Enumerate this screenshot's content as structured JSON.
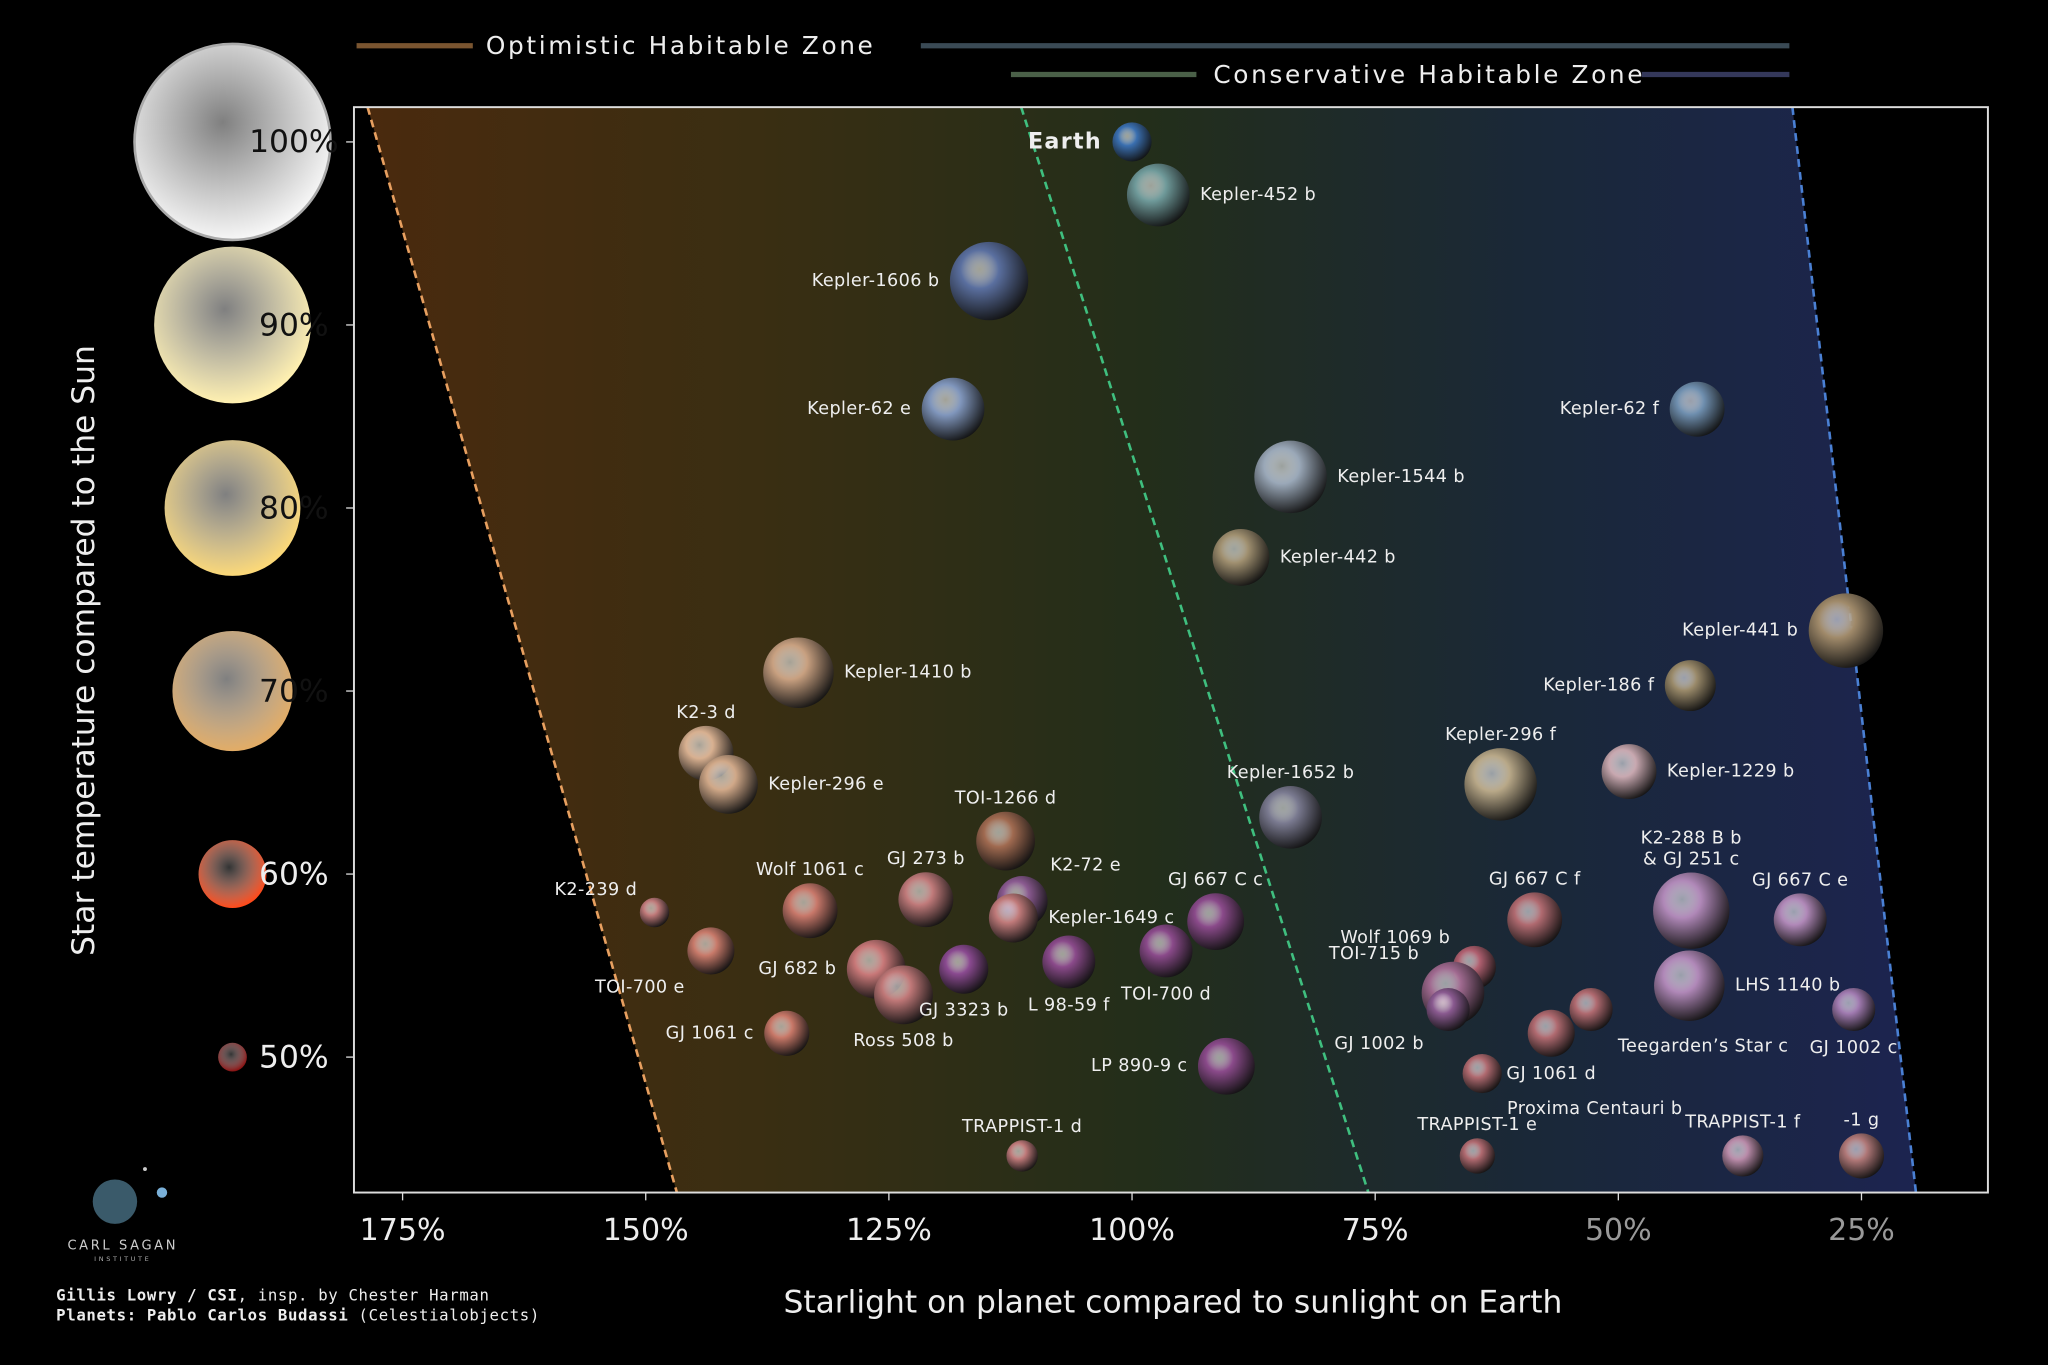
{
  "chart_data": {
    "type": "scatter",
    "x_label": "Starlight on planet compared to sunlight on Earth",
    "y_label": "Star temperature compared to the Sun",
    "xlim": [
      180,
      12
    ],
    "ylim": [
      42.6,
      101.9
    ],
    "xticks": [
      {
        "value": 175,
        "label": "175%"
      },
      {
        "value": 150,
        "label": "150%"
      },
      {
        "value": 125,
        "label": "125%"
      },
      {
        "value": 100,
        "label": "100%"
      },
      {
        "value": 75,
        "label": "75%"
      },
      {
        "value": 50,
        "label": "50%"
      },
      {
        "value": 25,
        "label": "25%"
      }
    ],
    "yticks": [
      {
        "value": 100,
        "label": "100%"
      },
      {
        "value": 90,
        "label": "90%"
      },
      {
        "value": 80,
        "label": "80%"
      },
      {
        "value": 70,
        "label": "70%"
      },
      {
        "value": 60,
        "label": "60%"
      },
      {
        "value": 50,
        "label": "50%"
      }
    ],
    "star_colors": [
      "#f6f6f6",
      "#fff0b0",
      "#fbd878",
      "#e2ac66",
      "#ff4a1a",
      "#8a1010"
    ],
    "zones": [
      {
        "name": "Optimistic Habitable Zone",
        "inner": [
          178.6,
          146.8
        ],
        "color": "#e8a060"
      },
      {
        "name": "Conservative Habitable Zone",
        "inner": [
          111.4,
          75.7
        ],
        "color": "#3fbf7f"
      }
    ],
    "outer_edge": {
      "x": [
        32.1,
        19.4
      ],
      "color": "#4a80d4"
    },
    "labels": [
      "Earth",
      "Kepler-452 b",
      "Kepler-1606 b",
      "Kepler-62 e",
      "Kepler-62 f",
      "Kepler-1544 b",
      "Kepler-442 b",
      "Kepler-441 b",
      "Kepler-186 f",
      "Kepler-1410 b",
      "K2-3 d",
      "Kepler-296 e",
      "Kepler-296 f",
      "Kepler-1229 b",
      "Kepler-1652 b",
      "TOI-1266 d",
      "K2-239 d",
      "Wolf 1061 c",
      "GJ 273 b",
      "K2-72 e",
      "Kepler-1649 c",
      "GJ 667 C c",
      "TOI-700 e",
      "GJ 682 b",
      "Ross 508 b",
      "GJ 3323 b",
      "L 98-59 f",
      "TOI-700 d",
      "GJ 1061 c",
      "LP 890-9 c",
      "TRAPPIST-1 d",
      "GJ 667 C f",
      "K2-288 B b\n& GJ 251 c",
      "GJ 667 C e",
      "Wolf 1069 b",
      "TOI-715 b",
      "LHS 1140 b",
      "GJ 1002 b",
      "Teegarden’s Star c",
      "GJ 1061 d",
      "Proxima Centauri b",
      "GJ 1002 c",
      "TRAPPIST-1 e",
      "TRAPPIST-1 f",
      "-1 g"
    ],
    "x": [
      100,
      97.3,
      114.7,
      118.4,
      41.9,
      83.7,
      88.8,
      26.6,
      42.6,
      134.3,
      143.8,
      141.5,
      62.1,
      48.9,
      83.7,
      113,
      149.1,
      133.1,
      121.2,
      111.3,
      112.2,
      91.4,
      143.3,
      126.3,
      123.5,
      117.3,
      106.5,
      96.5,
      135.5,
      90.3,
      111.3,
      58.6,
      42.5,
      31.3,
      64.8,
      67,
      42.7,
      67.5,
      52.8,
      56.9,
      64,
      25.8,
      64.5,
      37.2,
      25
    ],
    "values": [
      100,
      97.1,
      92.4,
      85.4,
      85.4,
      81.7,
      77.3,
      73.3,
      70.3,
      71,
      66.6,
      64.9,
      64.9,
      65.6,
      63.1,
      61.8,
      57.9,
      58,
      58.6,
      58.5,
      57.6,
      57.4,
      55.8,
      54.8,
      53.4,
      54.8,
      55.2,
      55.8,
      51.3,
      49.5,
      44.6,
      57.5,
      58,
      57.5,
      54.9,
      53.5,
      53.9,
      52.6,
      52.6,
      51.3,
      49.1,
      52.6,
      44.6,
      44.6,
      44.6
    ],
    "sizes": [
      1,
      1.6,
      2,
      1.6,
      1.4,
      1.85,
      1.45,
      1.9,
      1.3,
      1.8,
      1.4,
      1.5,
      1.85,
      1.4,
      1.6,
      1.5,
      0.75,
      1.4,
      1.4,
      1.3,
      1.25,
      1.45,
      1.2,
      1.5,
      1.5,
      1.25,
      1.35,
      1.35,
      1.15,
      1.45,
      0.8,
      1.4,
      1.95,
      1.35,
      1.1,
      1.6,
      1.8,
      1.1,
      1.1,
      1.2,
      1,
      1.1,
      0.9,
      1.05,
      1.15
    ],
    "colors": [
      "#3a6fb0",
      "#6f9a9a",
      "#5a6f9f",
      "#8096bc",
      "#6f8faf",
      "#9aa8b8",
      "#a09070",
      "#a08a6a",
      "#9a8a6a",
      "#c8a080",
      "#d8b090",
      "#d0a888",
      "#b8a888",
      "#c8a8b0",
      "#7a7a90",
      "#a06a50",
      "#c07a7a",
      "#c8786a",
      "#c07a7a",
      "#8a5a90",
      "#c07a7a",
      "#8a4a8a",
      "#c87a6a",
      "#c87878",
      "#c07878",
      "#8a4a90",
      "#8a4a8a",
      "#8a4a8a",
      "#c87868",
      "#8a4a8a",
      "#c07a7a",
      "#b06a70",
      "#b088b8",
      "#b088b8",
      "#b06070",
      "#a06a90",
      "#b088b8",
      "#8a5a90",
      "#b06a70",
      "#b06a70",
      "#b06a70",
      "#a07ab0",
      "#b06a70",
      "#b88aa8",
      "#b07878"
    ],
    "credits": [
      {
        "bold": "Gillis Lowry / CSI",
        "text": ", insp. by Chester Harman"
      },
      {
        "bold": "Planets: Pablo Carlos Budassi",
        "text": " (Celestialobjects)"
      }
    ],
    "logo": [
      "CARL SAGAN",
      "INSTITUTE"
    ]
  }
}
